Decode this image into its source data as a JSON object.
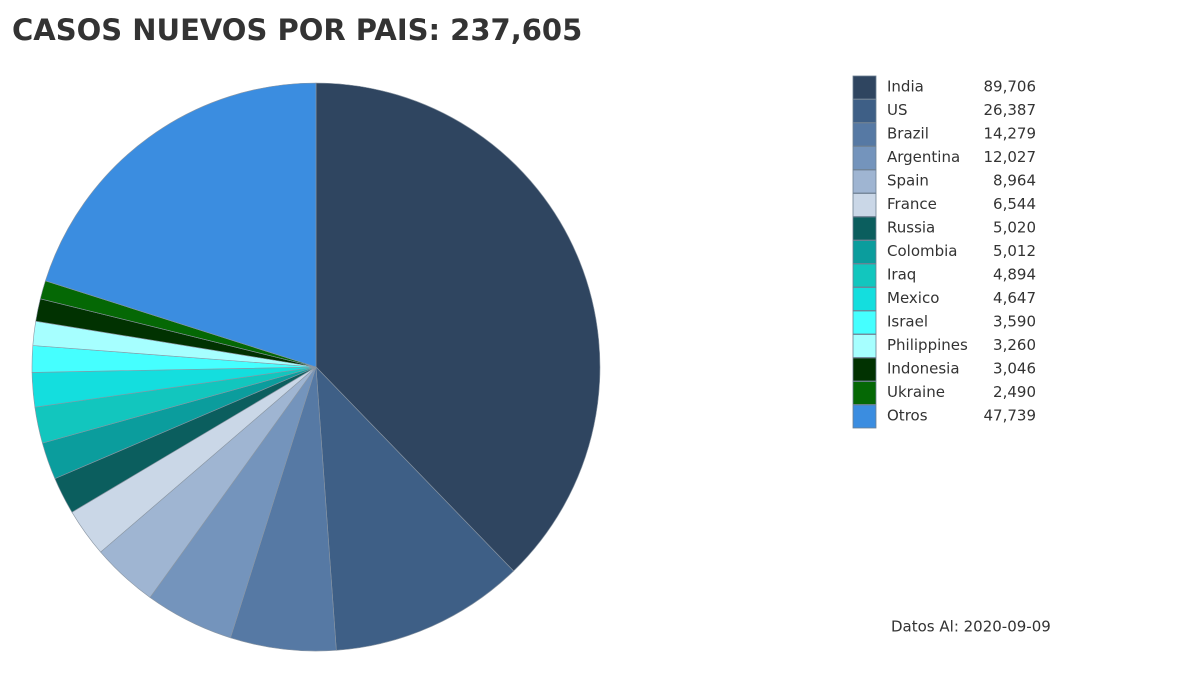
{
  "chart_data": {
    "type": "pie",
    "title": "CASOS NUEVOS POR PAIS: 237,605",
    "categories": [
      "India",
      "US",
      "Brazil",
      "Argentina",
      "Spain",
      "France",
      "Russia",
      "Colombia",
      "Iraq",
      "Mexico",
      "Israel",
      "Philippines",
      "Indonesia",
      "Ukraine",
      "Otros"
    ],
    "values": [
      89706,
      26387,
      14279,
      12027,
      8964,
      6544,
      5020,
      5012,
      4894,
      4647,
      3590,
      3260,
      3046,
      2490,
      47739
    ],
    "value_labels": [
      "89,706",
      "26,387",
      "14,279",
      "12,027",
      "8,964",
      "6,544",
      "5,020",
      "5,012",
      "4,894",
      "4,647",
      "3,590",
      "3,260",
      "3,046",
      "2,490",
      "47,739"
    ],
    "colors": [
      "#2f4560",
      "#3e5f86",
      "#5679a4",
      "#7494bc",
      "#9fb5d2",
      "#cad7e7",
      "#0b5e5e",
      "#0b9d9d",
      "#12c6be",
      "#14dede",
      "#45ffff",
      "#a6ffff",
      "#013201",
      "#056805",
      "#3b8de0"
    ],
    "footnote": "Datos Al: 2020-09-09"
  }
}
